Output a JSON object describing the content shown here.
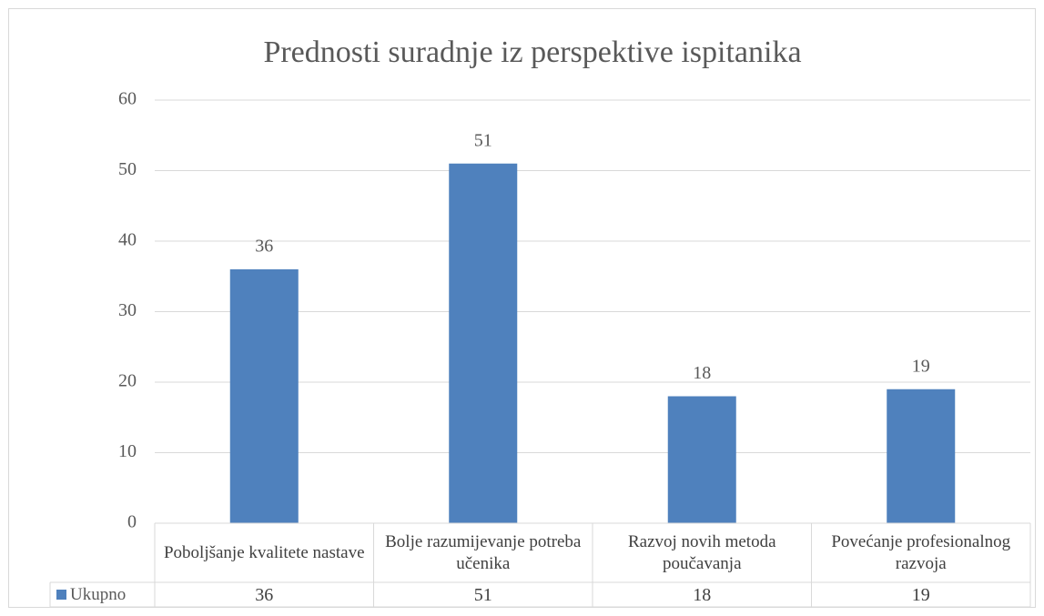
{
  "chart_data": {
    "type": "bar",
    "title": "Prednosti suradnje iz perspektive ispitanika",
    "categories": [
      "Poboljšanje kvalitete nastave",
      "Bolje razumijevanje potreba učenika",
      "Razvoj novih metoda poučavanja",
      "Povećanje profesionalnog razvoja"
    ],
    "series": [
      {
        "name": "Ukupno",
        "color": "#4f81bd",
        "values": [
          36,
          51,
          18,
          19
        ]
      }
    ],
    "ylim": [
      0,
      60
    ],
    "yticks": [
      0,
      10,
      20,
      30,
      40,
      50,
      60
    ],
    "grid": true,
    "data_table": true
  }
}
